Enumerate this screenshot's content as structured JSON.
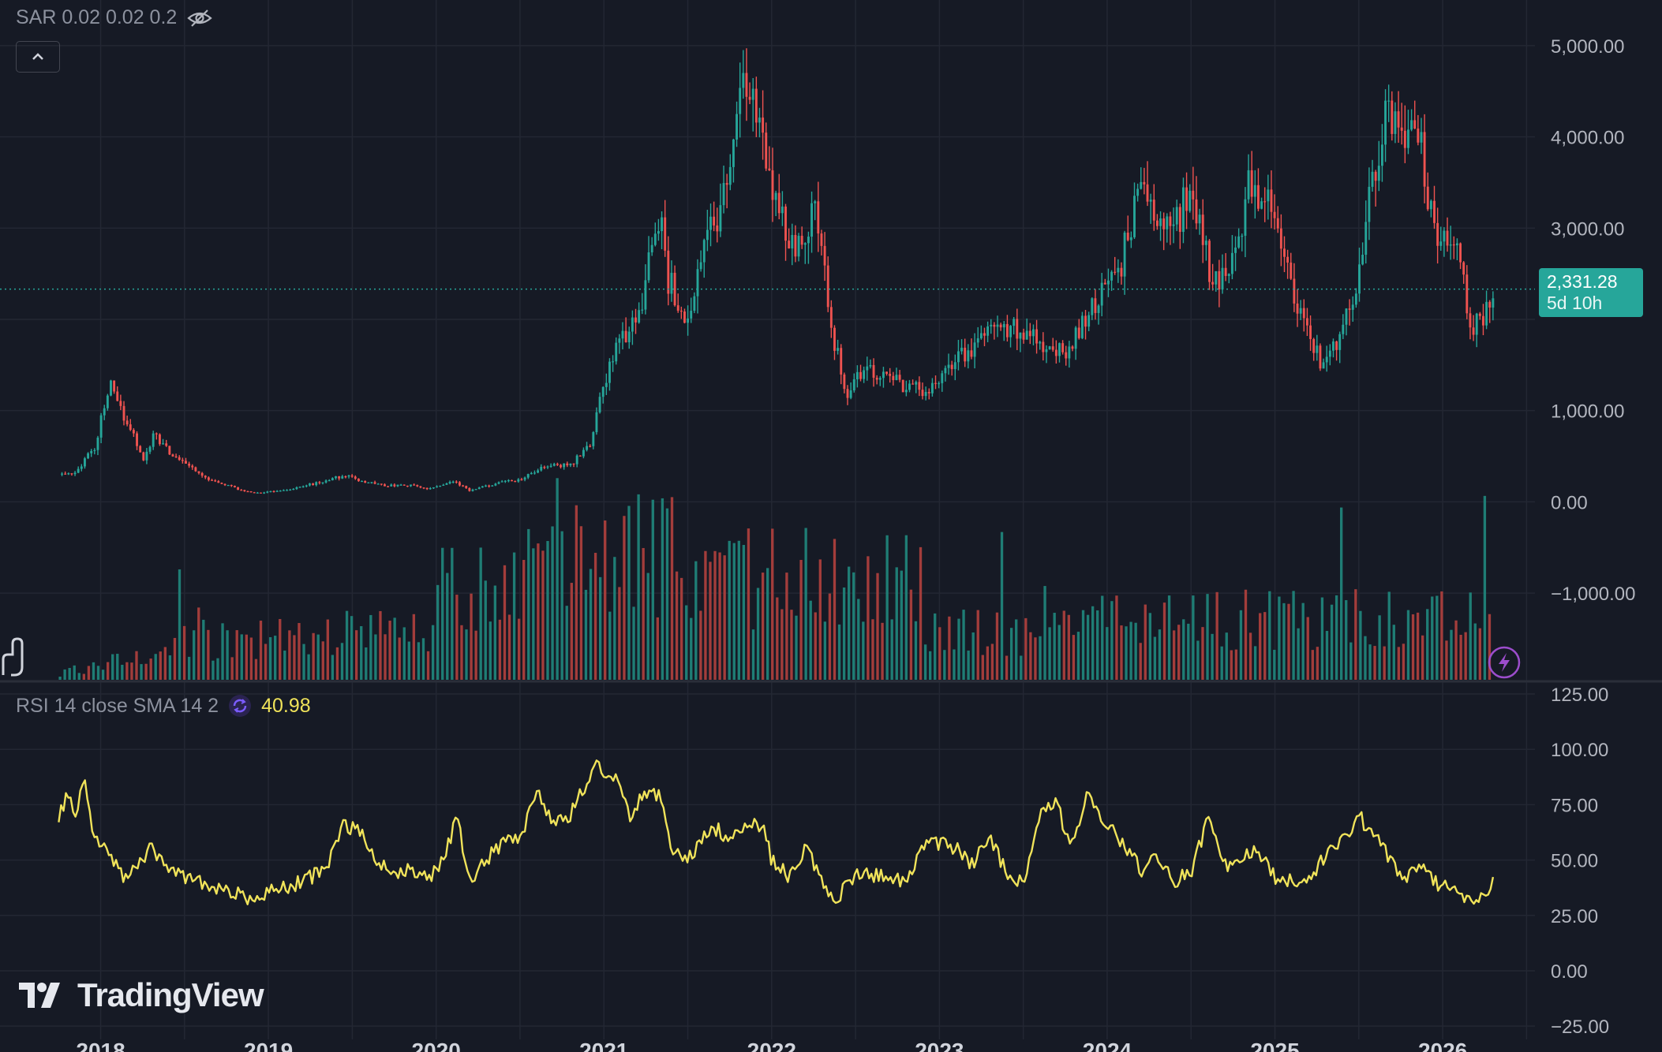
{
  "sar_legend": {
    "label": "SAR 0.02 0.02 0.2",
    "visibility_icon": "eye-crossed-icon"
  },
  "rsi_legend": {
    "label": "RSI 14 close SMA 14 2",
    "value": "40.98",
    "sync_icon": "sync-icon"
  },
  "price_tag": {
    "price": "2,331.28",
    "countdown": "5d 10h"
  },
  "logo_text": "TradingView",
  "colors": {
    "background": "#161a25",
    "grid": "#232733",
    "axis_text": "#b2b5be",
    "up": "#26a69a",
    "down": "#ef5350",
    "rsi_line": "#f0e35a",
    "price_line": "#26a69a",
    "volume_up": "#1f7d75",
    "volume_down": "#a33d3b"
  },
  "chart_data": [
    {
      "type": "candlestick",
      "yticks": [
        "5,000.00",
        "4,000.00",
        "3,000.00",
        "1,000.00",
        "0.00",
        "−1,000.00"
      ],
      "ytick_values": [
        5000,
        4000,
        3000,
        1000,
        0,
        -1000
      ],
      "ylim": [
        -1950,
        5500
      ],
      "last_price": 2331.28,
      "xticks": [
        "2018",
        "2019",
        "2020",
        "2021",
        "2022",
        "2023",
        "2024",
        "2025",
        "2026"
      ],
      "xlim": [
        2017.4,
        2026.55
      ],
      "x_start": 2017.75,
      "x_end": 2026.3,
      "close_anchors": [
        [
          2017.75,
          300
        ],
        [
          2017.85,
          320
        ],
        [
          2017.97,
          620
        ],
        [
          2018.05,
          1300
        ],
        [
          2018.1,
          1050
        ],
        [
          2018.18,
          820
        ],
        [
          2018.25,
          450
        ],
        [
          2018.32,
          750
        ],
        [
          2018.4,
          560
        ],
        [
          2018.5,
          440
        ],
        [
          2018.6,
          280
        ],
        [
          2018.7,
          220
        ],
        [
          2018.85,
          120
        ],
        [
          2018.95,
          100
        ],
        [
          2019.1,
          130
        ],
        [
          2019.3,
          210
        ],
        [
          2019.45,
          290
        ],
        [
          2019.55,
          230
        ],
        [
          2019.7,
          180
        ],
        [
          2019.85,
          180
        ],
        [
          2019.95,
          140
        ],
        [
          2020.1,
          230
        ],
        [
          2020.2,
          120
        ],
        [
          2020.35,
          200
        ],
        [
          2020.5,
          240
        ],
        [
          2020.65,
          390
        ],
        [
          2020.8,
          400
        ],
        [
          2020.92,
          650
        ],
        [
          2021.0,
          1300
        ],
        [
          2021.1,
          1800
        ],
        [
          2021.2,
          2000
        ],
        [
          2021.33,
          3200
        ],
        [
          2021.37,
          2500
        ],
        [
          2021.47,
          2100
        ],
        [
          2021.5,
          1900
        ],
        [
          2021.6,
          2800
        ],
        [
          2021.7,
          3300
        ],
        [
          2021.8,
          4200
        ],
        [
          2021.86,
          4600
        ],
        [
          2021.95,
          3800
        ],
        [
          2022.05,
          3100
        ],
        [
          2022.15,
          2700
        ],
        [
          2022.25,
          3300
        ],
        [
          2022.35,
          2000
        ],
        [
          2022.45,
          1100
        ],
        [
          2022.55,
          1500
        ],
        [
          2022.65,
          1350
        ],
        [
          2022.75,
          1300
        ],
        [
          2022.85,
          1250
        ],
        [
          2022.95,
          1200
        ],
        [
          2023.05,
          1550
        ],
        [
          2023.15,
          1600
        ],
        [
          2023.28,
          1850
        ],
        [
          2023.4,
          1880
        ],
        [
          2023.55,
          1900
        ],
        [
          2023.65,
          1700
        ],
        [
          2023.75,
          1600
        ],
        [
          2023.85,
          2000
        ],
        [
          2023.95,
          2250
        ],
        [
          2024.05,
          2400
        ],
        [
          2024.2,
          3500
        ],
        [
          2024.28,
          3100
        ],
        [
          2024.4,
          3000
        ],
        [
          2024.5,
          3500
        ],
        [
          2024.6,
          2600
        ],
        [
          2024.72,
          2400
        ],
        [
          2024.85,
          3500
        ],
        [
          2024.95,
          3300
        ],
        [
          2025.05,
          2700
        ],
        [
          2025.15,
          2000
        ],
        [
          2025.28,
          1500
        ],
        [
          2025.38,
          1800
        ],
        [
          2025.5,
          2500
        ],
        [
          2025.6,
          3700
        ],
        [
          2025.68,
          4300
        ],
        [
          2025.75,
          4200
        ],
        [
          2025.88,
          3800
        ],
        [
          2025.95,
          3000
        ],
        [
          2026.05,
          3000
        ],
        [
          2026.12,
          2400
        ],
        [
          2026.18,
          1900
        ],
        [
          2026.25,
          2000
        ],
        [
          2026.3,
          2331
        ]
      ]
    },
    {
      "type": "line",
      "series": [
        {
          "name": "RSI 14 close SMA 14 2",
          "last_value": 40.98
        }
      ],
      "yticks": [
        "125.00",
        "100.00",
        "75.00",
        "50.00",
        "25.00",
        "0.00",
        "−25.00"
      ],
      "ytick_values": [
        125,
        100,
        75,
        50,
        25,
        0,
        -25
      ],
      "ylim": [
        -31,
        130
      ],
      "rsi_anchors": [
        [
          2017.75,
          68
        ],
        [
          2017.8,
          80
        ],
        [
          2017.85,
          72
        ],
        [
          2017.9,
          86
        ],
        [
          2017.95,
          62
        ],
        [
          2018.05,
          52
        ],
        [
          2018.15,
          42
        ],
        [
          2018.3,
          55
        ],
        [
          2018.4,
          45
        ],
        [
          2018.55,
          42
        ],
        [
          2018.7,
          36
        ],
        [
          2018.85,
          34
        ],
        [
          2018.92,
          30
        ],
        [
          2019.0,
          37
        ],
        [
          2019.1,
          37
        ],
        [
          2019.25,
          42
        ],
        [
          2019.35,
          48
        ],
        [
          2019.45,
          66
        ],
        [
          2019.55,
          62
        ],
        [
          2019.65,
          50
        ],
        [
          2019.75,
          45
        ],
        [
          2019.85,
          45
        ],
        [
          2019.95,
          42
        ],
        [
          2020.05,
          50
        ],
        [
          2020.12,
          70
        ],
        [
          2020.2,
          40
        ],
        [
          2020.3,
          50
        ],
        [
          2020.4,
          58
        ],
        [
          2020.5,
          60
        ],
        [
          2020.6,
          80
        ],
        [
          2020.7,
          66
        ],
        [
          2020.8,
          70
        ],
        [
          2020.85,
          78
        ],
        [
          2020.95,
          92
        ],
        [
          2021.05,
          90
        ],
        [
          2021.15,
          70
        ],
        [
          2021.25,
          80
        ],
        [
          2021.35,
          78
        ],
        [
          2021.4,
          55
        ],
        [
          2021.5,
          50
        ],
        [
          2021.6,
          62
        ],
        [
          2021.65,
          65
        ],
        [
          2021.75,
          60
        ],
        [
          2021.85,
          68
        ],
        [
          2021.95,
          65
        ],
        [
          2022.0,
          50
        ],
        [
          2022.1,
          43
        ],
        [
          2022.2,
          55
        ],
        [
          2022.3,
          42
        ],
        [
          2022.38,
          30
        ],
        [
          2022.45,
          42
        ],
        [
          2022.6,
          43
        ],
        [
          2022.7,
          42
        ],
        [
          2022.8,
          40
        ],
        [
          2022.9,
          56
        ],
        [
          2023.0,
          58
        ],
        [
          2023.1,
          55
        ],
        [
          2023.2,
          48
        ],
        [
          2023.3,
          60
        ],
        [
          2023.4,
          45
        ],
        [
          2023.5,
          40
        ],
        [
          2023.6,
          70
        ],
        [
          2023.7,
          75
        ],
        [
          2023.78,
          56
        ],
        [
          2023.88,
          80
        ],
        [
          2024.0,
          65
        ],
        [
          2024.1,
          58
        ],
        [
          2024.2,
          45
        ],
        [
          2024.3,
          52
        ],
        [
          2024.4,
          40
        ],
        [
          2024.5,
          45
        ],
        [
          2024.6,
          68
        ],
        [
          2024.72,
          45
        ],
        [
          2024.8,
          50
        ],
        [
          2024.9,
          55
        ],
        [
          2025.0,
          42
        ],
        [
          2025.1,
          40
        ],
        [
          2025.2,
          42
        ],
        [
          2025.3,
          52
        ],
        [
          2025.4,
          58
        ],
        [
          2025.5,
          70
        ],
        [
          2025.6,
          60
        ],
        [
          2025.7,
          50
        ],
        [
          2025.78,
          40
        ],
        [
          2025.85,
          48
        ],
        [
          2025.95,
          40
        ],
        [
          2026.1,
          36
        ],
        [
          2026.15,
          32
        ],
        [
          2026.25,
          33
        ],
        [
          2026.3,
          41
        ]
      ]
    }
  ]
}
